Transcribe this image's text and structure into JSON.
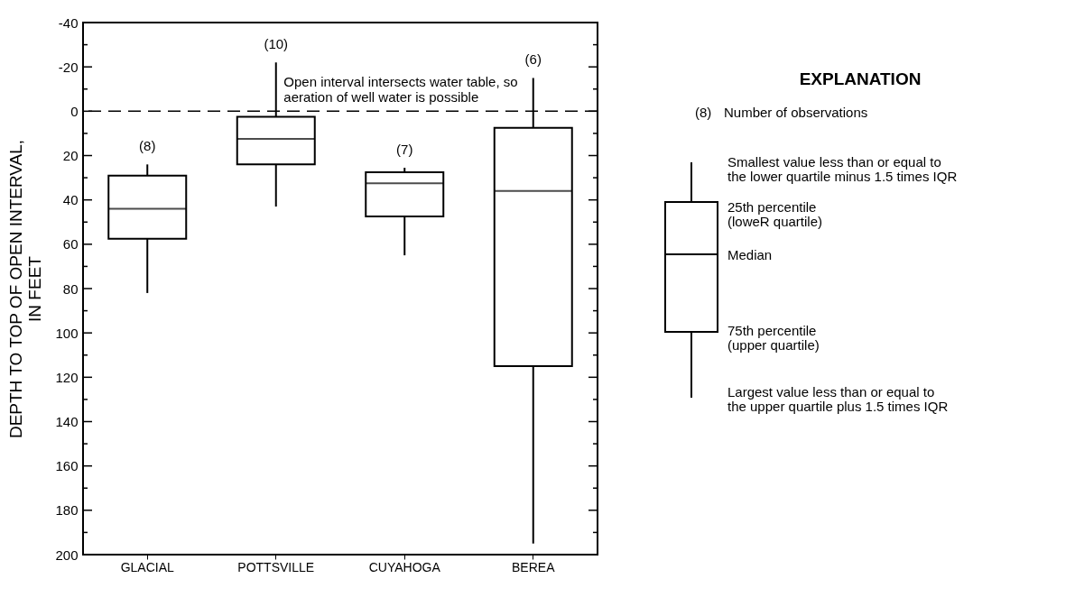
{
  "chart_data": {
    "type": "box",
    "ylabel": "DEPTH TO TOP OF OPEN INTERVAL,\nIN FEET",
    "categories": [
      "GLACIAL",
      "POTTSVILLE",
      "CUYAHOGA",
      "BEREA"
    ],
    "color": "#000000",
    "boxes": [
      {
        "low": 24,
        "q1": 29,
        "median": 44,
        "q3": 57.5,
        "high": 82
      },
      {
        "low": -22,
        "q1": 2.5,
        "median": 12.5,
        "q3": 24,
        "high": 43
      },
      {
        "low": 25.5,
        "q1": 27.5,
        "median": 32.5,
        "q3": 47.5,
        "high": 65
      },
      {
        "low": -15,
        "q1": 7.5,
        "median": 36,
        "q3": 115,
        "high": 195
      }
    ],
    "ylim": [
      200,
      -40
    ],
    "yticks": [
      -40,
      {
        "value": -30,
        "label": null
      },
      -20,
      {
        "value": -10,
        "label": null
      },
      0,
      {
        "value": 10,
        "label": null
      },
      20,
      {
        "value": 30,
        "label": null
      },
      40,
      {
        "value": 50,
        "label": null
      },
      60,
      {
        "value": 70,
        "label": null
      },
      80,
      {
        "value": 90,
        "label": null
      },
      100,
      {
        "value": 110,
        "label": null
      },
      120,
      {
        "value": 130,
        "label": null
      },
      140,
      {
        "value": 150,
        "label": null
      },
      160,
      {
        "value": 170,
        "label": null
      },
      180,
      {
        "value": 190,
        "label": null
      },
      200
    ],
    "ref_lines": [
      {
        "axis": "y",
        "value": 0,
        "label": "Open interval intersects water table, so\naeration of well water is possible",
        "color": "#000000",
        "line_style": "dashed"
      }
    ],
    "annotations": [
      "(8)",
      "(10)",
      "(7)",
      "(6)",
      "EXPLANATION",
      "(8)",
      "Number of observations",
      "Smallest value less than or equal to\nthe lower quartile minus 1.5 times IQR",
      "25th percentile\n(loweR quartile)",
      "Median",
      "75th percentile\n(upper quartile)",
      "Largest value less than or equal to\nthe upper quartile plus 1.5 times IQR"
    ],
    "grid": false
  }
}
